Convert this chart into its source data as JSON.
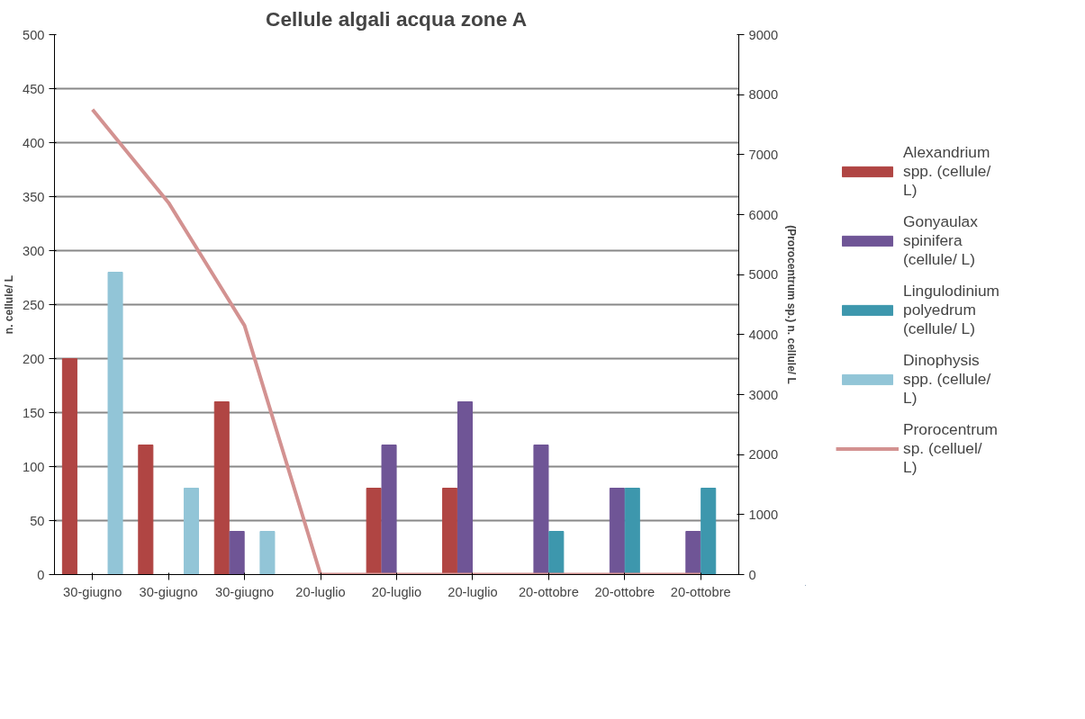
{
  "chart_data": {
    "type": "bar",
    "title": "Cellule algali acqua zone A",
    "ylabel": "n. cellule/ L",
    "y2label": "(Prorocentrum sp.) n. cellule/ L",
    "categories": [
      "30-giugno",
      "30-giugno",
      "30-giugno",
      "20-luglio",
      "20-luglio",
      "20-luglio",
      "20-ottobre",
      "20-ottobre",
      "20-ottobre"
    ],
    "series": [
      {
        "name": "Alexandrium spp. (cellule/ L)",
        "color": "#b04543",
        "values": [
          200,
          120,
          160,
          0,
          80,
          80,
          0,
          0,
          0
        ]
      },
      {
        "name": "Gonyaulax spinifera (cellule/ L)",
        "color": "#6f5596",
        "values": [
          0,
          0,
          40,
          0,
          120,
          160,
          120,
          80,
          40
        ]
      },
      {
        "name": "Lingulodinium polyedrum (cellule/ L)",
        "color": "#3d97ad",
        "values": [
          0,
          0,
          0,
          0,
          0,
          0,
          40,
          80,
          80
        ]
      },
      {
        "name": "Dinophysis spp. (cellule/ L)",
        "color": "#92c5d7",
        "values": [
          280,
          80,
          40,
          0,
          0,
          0,
          0,
          0,
          0
        ]
      },
      {
        "name": "Prorocentrum sp. (celluel/ L)",
        "color": "#d39291",
        "type": "line",
        "axis": "y2",
        "values": [
          7750,
          6200,
          4150,
          0,
          0,
          0,
          0,
          0,
          0
        ]
      }
    ],
    "ylim": [
      0,
      500
    ],
    "yticks": [
      0,
      50,
      100,
      150,
      200,
      250,
      300,
      350,
      400,
      450,
      500
    ],
    "y2lim": [
      0,
      9000
    ],
    "y2ticks": [
      0,
      1000,
      2000,
      3000,
      4000,
      5000,
      6000,
      7000,
      8000,
      9000
    ],
    "grid": "y",
    "legend": "right"
  }
}
